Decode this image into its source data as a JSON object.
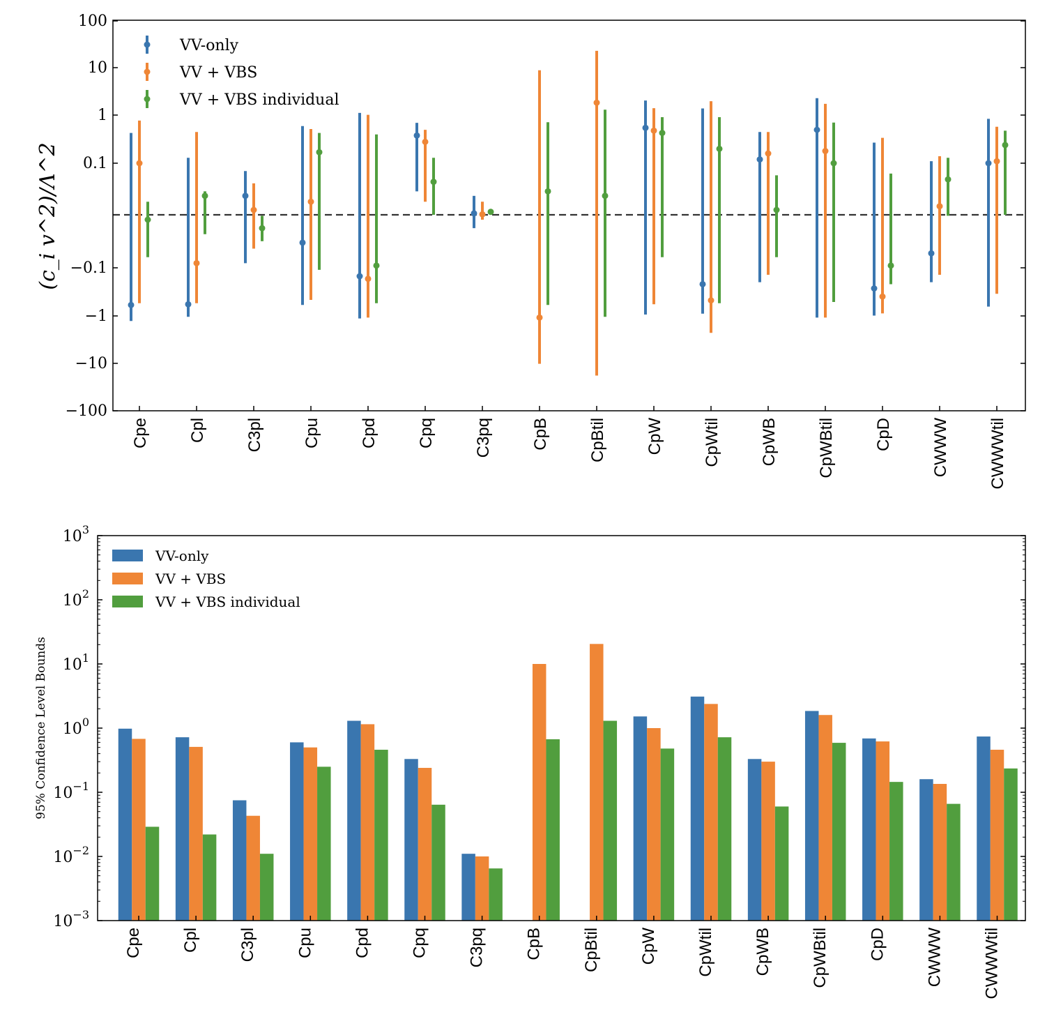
{
  "chart_data": [
    {
      "type": "errorbar",
      "title": "",
      "ylabel": "(c_i v^2)/Λ^2",
      "yscale": "symlog",
      "ylim": [
        -100,
        100
      ],
      "ytick_labels": [
        "100",
        "10",
        "1",
        "0.1",
        "−0.1",
        "−1",
        "−10",
        "−100"
      ],
      "categories": [
        "Cpe",
        "Cpl",
        "C3pl",
        "Cpu",
        "Cpd",
        "Cpq",
        "C3pq",
        "CpB",
        "CpBtil",
        "CpW",
        "CpWtil",
        "CpWB",
        "CpWBtil",
        "CpD",
        "CWWW",
        "CWWWtil"
      ],
      "reference_line": 0,
      "legend": [
        "VV-only",
        "VV + VBS",
        "VV + VBS individual"
      ],
      "legend_position": "top-left",
      "series": [
        {
          "name": "VV-only",
          "color": "#3a76af",
          "center": [
            -0.6,
            -0.58,
            0.02,
            -0.03,
            -0.15,
            0.38,
            0.003,
            null,
            null,
            0.55,
            -0.22,
            0.12,
            0.5,
            -0.27,
            -0.05,
            0.1
          ],
          "low": [
            -1.3,
            -1.06,
            -0.08,
            -0.6,
            -1.15,
            0.025,
            -0.015,
            null,
            null,
            -0.95,
            -0.91,
            -0.2,
            -1.1,
            -1.0,
            -0.2,
            -0.65
          ],
          "high": [
            0.43,
            0.13,
            0.068,
            0.6,
            1.13,
            0.7,
            0.02,
            null,
            null,
            2.05,
            1.4,
            0.45,
            2.3,
            0.27,
            0.11,
            0.85
          ]
        },
        {
          "name": "VV + VBS",
          "color": "#ef8636",
          "center": [
            0.1,
            -0.08,
            0.01,
            0.015,
            -0.17,
            0.28,
            0.001,
            -1.1,
            1.85,
            0.48,
            -0.48,
            0.16,
            0.18,
            -0.4,
            0.012,
            0.11
          ],
          "low": [
            -0.55,
            -0.55,
            -0.04,
            -0.47,
            -1.1,
            0.015,
            -0.01,
            -10.2,
            -18.0,
            -0.58,
            -2.3,
            -0.14,
            -1.1,
            -0.9,
            -0.14,
            -0.35
          ],
          "high": [
            0.78,
            0.45,
            0.037,
            0.52,
            1.03,
            0.5,
            0.015,
            8.8,
            22.5,
            1.42,
            1.98,
            0.45,
            1.75,
            0.34,
            0.14,
            0.58
          ]
        },
        {
          "name": "VV + VBS individual",
          "color": "#519e3e",
          "center": [
            -0.01,
            0.02,
            -0.015,
            0.17,
            -0.09,
            0.04,
            0.006,
            0.025,
            0.02,
            0.43,
            0.2,
            0.01,
            0.1,
            -0.09,
            0.045,
            0.24
          ],
          "low": [
            -0.06,
            -0.02,
            -0.028,
            -0.11,
            -0.55,
            0.0,
            0.001,
            -0.6,
            -1.06,
            -0.06,
            -0.55,
            -0.06,
            -0.52,
            -0.22,
            -0.002,
            0.0
          ],
          "high": [
            0.015,
            0.025,
            -0.002,
            0.43,
            0.4,
            0.13,
            0.01,
            0.72,
            1.32,
            0.92,
            0.92,
            0.055,
            0.71,
            0.06,
            0.13,
            0.48
          ]
        }
      ]
    },
    {
      "type": "bar",
      "title": "",
      "ylabel": "95% Confidence Level Bounds",
      "yscale": "log",
      "ylim": [
        0.001,
        1000
      ],
      "ytick_labels": [
        {
          "base": "10",
          "exp": "−3"
        },
        {
          "base": "10",
          "exp": "−2"
        },
        {
          "base": "10",
          "exp": "−1"
        },
        {
          "base": "10",
          "exp": "0"
        },
        {
          "base": "10",
          "exp": "1"
        },
        {
          "base": "10",
          "exp": "2"
        },
        {
          "base": "10",
          "exp": "3"
        }
      ],
      "categories": [
        "Cpe",
        "Cpl",
        "C3pl",
        "Cpu",
        "Cpd",
        "Cpq",
        "C3pq",
        "CpB",
        "CpBtil",
        "CpW",
        "CpWtil",
        "CpWB",
        "CpWBtil",
        "CpD",
        "CWWW",
        "CWWWtil"
      ],
      "legend": [
        "VV-only",
        "VV + VBS",
        "VV + VBS individual"
      ],
      "legend_position": "top-left",
      "series": [
        {
          "name": "VV-only",
          "color": "#3a76af",
          "values": [
            0.98,
            0.72,
            0.075,
            0.6,
            1.3,
            0.33,
            0.011,
            null,
            null,
            1.52,
            3.1,
            0.33,
            1.85,
            0.69,
            0.16,
            0.74
          ]
        },
        {
          "name": "VV + VBS",
          "color": "#ef8636",
          "values": [
            0.68,
            0.51,
            0.043,
            0.5,
            1.15,
            0.24,
            0.01,
            10.0,
            20.5,
            1.0,
            2.38,
            0.3,
            1.6,
            0.62,
            0.135,
            0.46
          ]
        },
        {
          "name": "VV + VBS individual",
          "color": "#519e3e",
          "values": [
            0.029,
            0.022,
            0.011,
            0.25,
            0.46,
            0.064,
            0.0065,
            0.67,
            1.3,
            0.48,
            0.72,
            0.06,
            0.59,
            0.145,
            0.066,
            0.235
          ]
        }
      ]
    }
  ]
}
